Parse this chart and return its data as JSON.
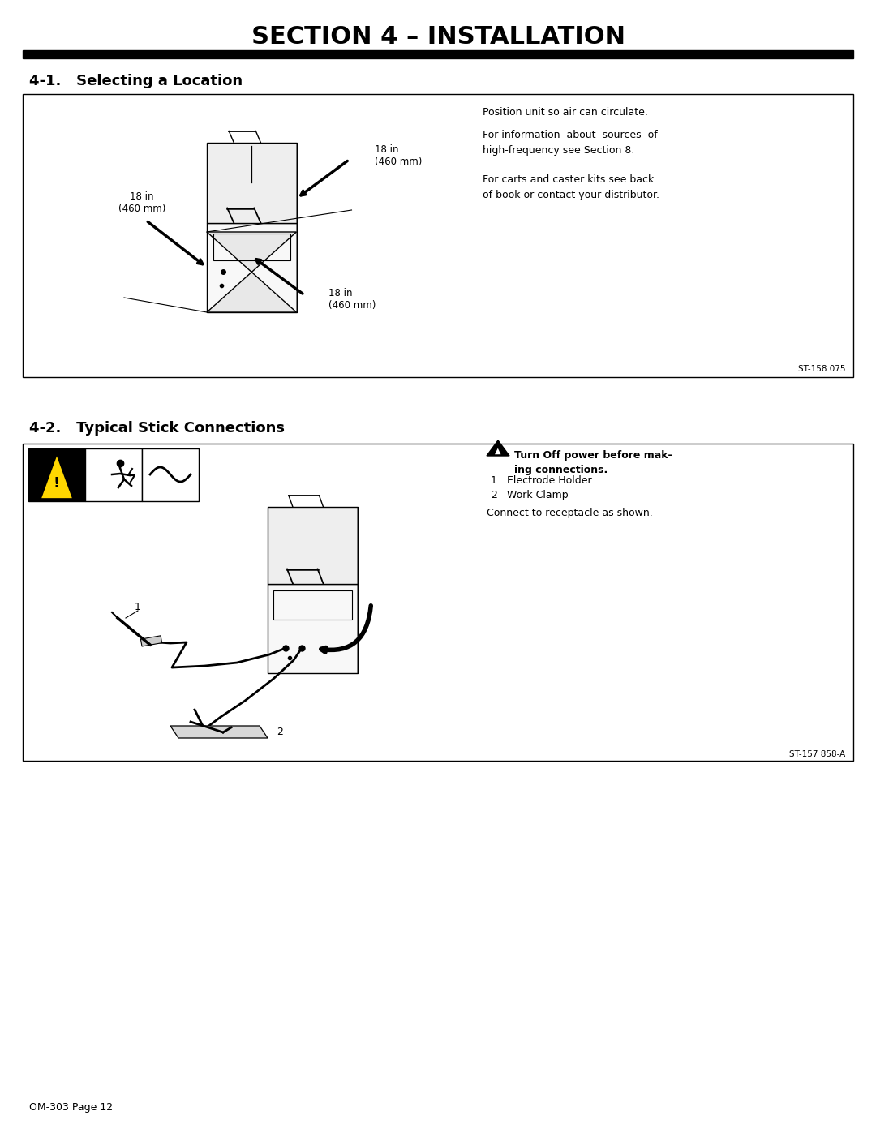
{
  "page_title": "SECTION 4 – INSTALLATION",
  "s1_title": "4-1.   Selecting a Location",
  "s2_title": "4-2.   Typical Stick Connections",
  "s1_note1": "Position unit so air can circulate.",
  "s1_note2": "For information  about  sources  of\nhigh-frequency see Section 8.",
  "s1_note3": "For carts and caster kits see back\nof book or contact your distributor.",
  "s1_ref": "ST-158 075",
  "s2_warn_bold": "Turn Off power before mak-\ning connections.",
  "s2_item1_num": "1",
  "s2_item1_txt": "Electrode Holder",
  "s2_item2_num": "2",
  "s2_item2_txt": "Work Clamp",
  "s2_connect": "Connect to receptacle as shown.",
  "s2_ref": "ST-157 858-A",
  "footer": "OM-303 Page 12",
  "s1_label_left": "18 in\n(460 mm)",
  "s1_label_top": "18 in\n(460 mm)",
  "s1_label_bot": "18 in\n(460 mm)",
  "bg": "#ffffff",
  "black": "#000000",
  "yellow": "#FFD700",
  "gray": "#aaaaaa",
  "lightgray": "#dddddd"
}
